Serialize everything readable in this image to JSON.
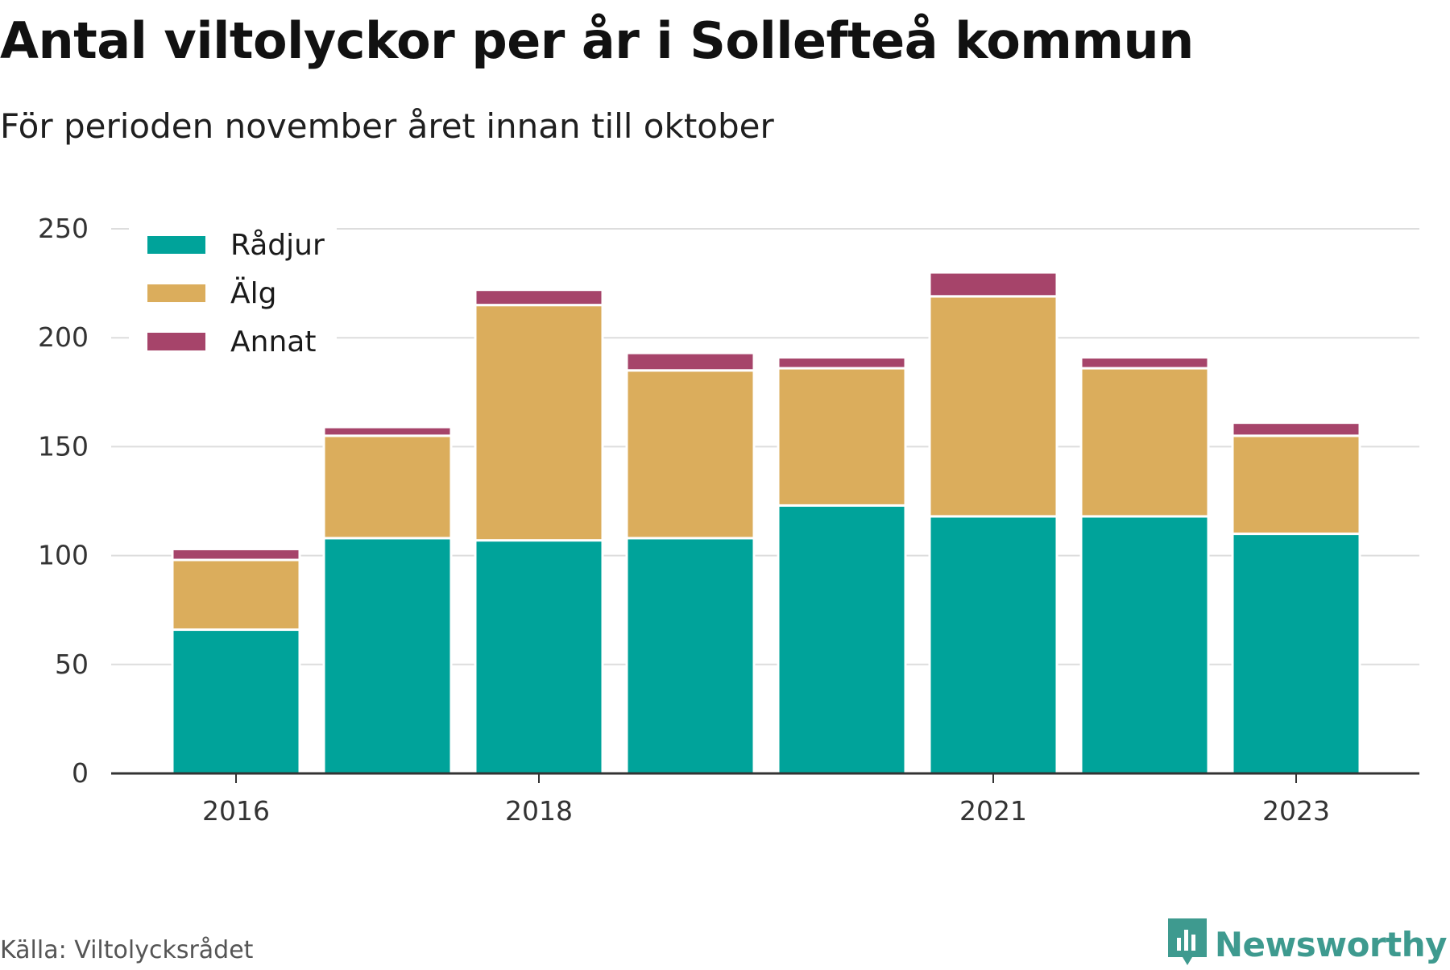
{
  "title": "Antal viltolyckor per år i Sollefteå kommun",
  "subtitle": "För perioden november året innan till oktober",
  "source": "Källa: Viltolycksrådet",
  "brand": {
    "name": "Newsworthy",
    "icon": "newsworthy-logo-icon",
    "color": "#3e9a8f"
  },
  "chart_data": {
    "type": "bar",
    "stacked": true,
    "categories": [
      "2016",
      "2017",
      "2018",
      "2019",
      "2020",
      "2021",
      "2022",
      "2023"
    ],
    "x_tick_labels": [
      "2016",
      "2018",
      "2021",
      "2023"
    ],
    "series": [
      {
        "name": "Rådjur",
        "color": "#00a39a",
        "values": [
          66,
          108,
          107,
          108,
          123,
          118,
          118,
          110
        ]
      },
      {
        "name": "Älg",
        "color": "#dbad5c",
        "values": [
          32,
          47,
          108,
          77,
          63,
          101,
          68,
          45
        ]
      },
      {
        "name": "Annat",
        "color": "#a6446a",
        "values": [
          5,
          4,
          7,
          8,
          5,
          11,
          5,
          6
        ]
      }
    ],
    "ylim": [
      0,
      250
    ],
    "yticks": [
      0,
      50,
      100,
      150,
      200,
      250
    ],
    "grid": true,
    "legend": "top-left",
    "xlabel": "",
    "ylabel": ""
  }
}
